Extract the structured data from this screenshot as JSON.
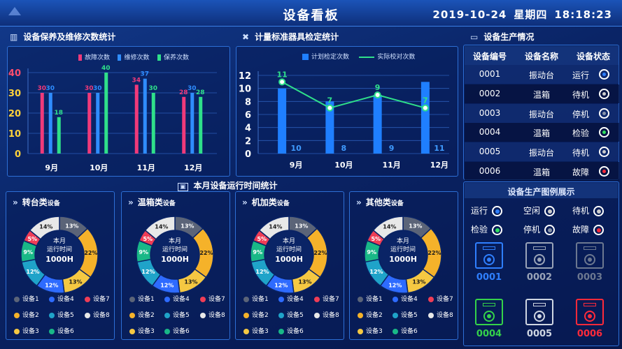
{
  "header": {
    "title": "设备看板",
    "date": "2019-10-24",
    "weekday": "星期四",
    "time": "18:18:23"
  },
  "maint": {
    "title": "设备保养及维修次数统计",
    "legend": [
      "故障次数",
      "维修次数",
      "保养次数"
    ],
    "colors": [
      "#f03a7a",
      "#2f8dff",
      "#2fe08a"
    ],
    "chart_data": {
      "type": "bar",
      "categories": [
        "9月",
        "10月",
        "11月",
        "12月"
      ],
      "series": [
        {
          "name": "故障次数",
          "values": [
            30,
            30,
            34,
            28
          ]
        },
        {
          "name": "维修次数",
          "values": [
            30,
            30,
            37,
            30
          ]
        },
        {
          "name": "保养次数",
          "values": [
            18,
            40,
            30,
            28
          ]
        }
      ],
      "ylim": [
        0,
        40
      ],
      "yticks": [
        "40",
        "30",
        "20",
        "10",
        "0"
      ]
    }
  },
  "calib": {
    "title": "计量标准器具检定统计",
    "legend": [
      "计划检定次数",
      "实际校对次数"
    ],
    "colors": [
      "#1f7fff",
      "#2fe08a"
    ],
    "chart_data": {
      "type": "bar",
      "categories": [
        "9月",
        "10月",
        "11月",
        "12月"
      ],
      "series": [
        {
          "name": "计划检定次数",
          "values": [
            10,
            8,
            9,
            11
          ]
        },
        {
          "name": "实际校对次数",
          "values": [
            11,
            7,
            9,
            7
          ]
        }
      ],
      "ylim": [
        0,
        12
      ],
      "yticks": [
        "12",
        "10",
        "8",
        "6",
        "4",
        "2",
        "0"
      ]
    }
  },
  "status_table": {
    "title": "设备生产情况",
    "headers": [
      "设备编号",
      "设备名称",
      "设备状态"
    ],
    "rows": [
      {
        "id": "0001",
        "name": "振动台",
        "status": "运行",
        "color": "#2f7fff"
      },
      {
        "id": "0002",
        "name": "温箱",
        "status": "待机",
        "color": "#cccccc"
      },
      {
        "id": "0003",
        "name": "振动台",
        "status": "停机",
        "color": "#8894aa"
      },
      {
        "id": "0004",
        "name": "温箱",
        "status": "检验",
        "color": "#2fe060"
      },
      {
        "id": "0005",
        "name": "振动台",
        "status": "待机",
        "color": "#cccccc"
      },
      {
        "id": "0006",
        "name": "温箱",
        "status": "故障",
        "color": "#ff2a3a"
      }
    ]
  },
  "runtime": {
    "title": "本月设备运行时间统计",
    "center_line1": "本月",
    "center_line2": "运行时间",
    "center_value": "1000H",
    "legend": [
      "设备1",
      "设备4",
      "设备7",
      "设备2",
      "设备5",
      "设备8",
      "设备3",
      "设备6"
    ],
    "slice_colors": [
      "#5b6478",
      "#f5b22a",
      "#f5c842",
      "#2e6bff",
      "#1fa3c9",
      "#19b887",
      "#ef3d56",
      "#e8e8e8"
    ],
    "slice_values": [
      13,
      22,
      13,
      12,
      12,
      9,
      5,
      14
    ],
    "slice_labels": [
      "13%",
      "22%",
      "13%",
      "12%",
      "12%",
      "9%",
      "5%",
      "14%"
    ],
    "legend_colors": [
      "#5b6478",
      "#2e6bff",
      "#ef3d56",
      "#f5b22a",
      "#1fa3c9",
      "#e8e8e8",
      "#f5c842",
      "#19b887"
    ],
    "cards": [
      {
        "name": "转台类",
        "suffix": "设备"
      },
      {
        "name": "温箱类",
        "suffix": "设备"
      },
      {
        "name": "机加类",
        "suffix": "设备"
      },
      {
        "name": "其他类",
        "suffix": "设备"
      }
    ]
  },
  "legend_panel": {
    "title": "设备生产图例展示",
    "items": [
      {
        "label": "运行",
        "color": "#2f7fff"
      },
      {
        "label": "空闲",
        "color": "#cccccc"
      },
      {
        "label": "待机",
        "color": "#cccccc"
      },
      {
        "label": "检验",
        "color": "#2fe060"
      },
      {
        "label": "停机",
        "color": "#8894aa"
      },
      {
        "label": "故障",
        "color": "#ff2a3a"
      }
    ],
    "devices": [
      {
        "num": "0001",
        "color": "#2f7fff"
      },
      {
        "num": "0002",
        "color": "#9aa4b8"
      },
      {
        "num": "0003",
        "color": "#6c7890"
      },
      {
        "num": "0004",
        "color": "#35d24a"
      },
      {
        "num": "0005",
        "color": "#cfd6e2"
      },
      {
        "num": "0006",
        "color": "#ff2a3a"
      }
    ]
  }
}
